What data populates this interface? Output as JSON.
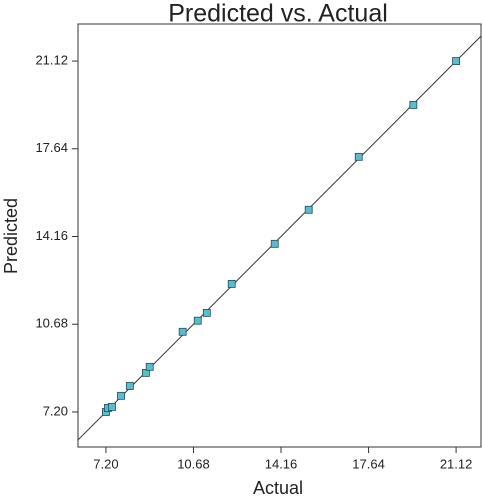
{
  "chart_data": {
    "type": "scatter",
    "title": "Predicted vs. Actual",
    "x_label": "Actual",
    "y_label": "Predicted",
    "x": [
      7.2,
      7.28,
      7.44,
      7.8,
      8.15,
      8.79,
      8.94,
      10.25,
      10.85,
      11.21,
      12.2,
      13.91,
      15.26,
      17.25,
      19.42,
      21.12
    ],
    "values": [
      7.2,
      7.36,
      7.4,
      7.84,
      8.23,
      8.75,
      8.99,
      10.38,
      10.82,
      11.13,
      12.28,
      13.87,
      15.22,
      17.32,
      19.38,
      21.12
    ],
    "color": "#5bbccc",
    "xlim": [
      6.09,
      22.11
    ],
    "ylim": [
      5.81,
      22.59
    ],
    "xticks": [
      {
        "value": 7.2,
        "label": "7.20"
      },
      {
        "value": 10.68,
        "label": "10.68"
      },
      {
        "value": 14.16,
        "label": "14.16"
      },
      {
        "value": 17.64,
        "label": "17.64"
      },
      {
        "value": 21.12,
        "label": "21.12"
      }
    ],
    "yticks": [
      {
        "value": 7.2,
        "label": "7.20"
      },
      {
        "value": 10.68,
        "label": "10.68"
      },
      {
        "value": 14.16,
        "label": "14.16"
      },
      {
        "value": 17.64,
        "label": "17.64"
      },
      {
        "value": 21.12,
        "label": "21.12"
      }
    ],
    "grid": false
  }
}
